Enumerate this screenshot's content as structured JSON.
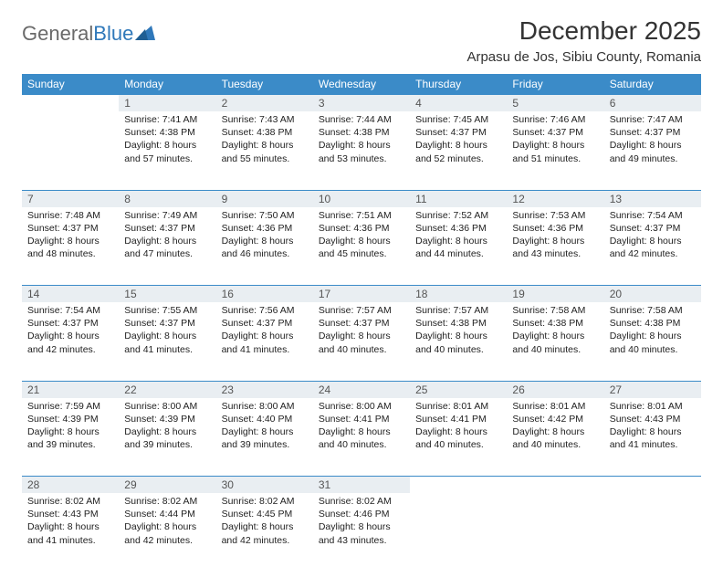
{
  "logo": {
    "text1": "General",
    "text2": "Blue"
  },
  "title": "December 2025",
  "location": "Arpasu de Jos, Sibiu County, Romania",
  "colors": {
    "header_bg": "#3b8bc8",
    "header_text": "#ffffff",
    "daynum_bg": "#e9eef2",
    "border": "#3b8bc8",
    "logo_gray": "#6a6a6a",
    "logo_blue": "#2f78ba"
  },
  "weekdays": [
    "Sunday",
    "Monday",
    "Tuesday",
    "Wednesday",
    "Thursday",
    "Friday",
    "Saturday"
  ],
  "weeks": [
    {
      "nums": [
        "",
        "1",
        "2",
        "3",
        "4",
        "5",
        "6"
      ],
      "cells": [
        null,
        {
          "sunrise": "Sunrise: 7:41 AM",
          "sunset": "Sunset: 4:38 PM",
          "day1": "Daylight: 8 hours",
          "day2": "and 57 minutes."
        },
        {
          "sunrise": "Sunrise: 7:43 AM",
          "sunset": "Sunset: 4:38 PM",
          "day1": "Daylight: 8 hours",
          "day2": "and 55 minutes."
        },
        {
          "sunrise": "Sunrise: 7:44 AM",
          "sunset": "Sunset: 4:38 PM",
          "day1": "Daylight: 8 hours",
          "day2": "and 53 minutes."
        },
        {
          "sunrise": "Sunrise: 7:45 AM",
          "sunset": "Sunset: 4:37 PM",
          "day1": "Daylight: 8 hours",
          "day2": "and 52 minutes."
        },
        {
          "sunrise": "Sunrise: 7:46 AM",
          "sunset": "Sunset: 4:37 PM",
          "day1": "Daylight: 8 hours",
          "day2": "and 51 minutes."
        },
        {
          "sunrise": "Sunrise: 7:47 AM",
          "sunset": "Sunset: 4:37 PM",
          "day1": "Daylight: 8 hours",
          "day2": "and 49 minutes."
        }
      ]
    },
    {
      "nums": [
        "7",
        "8",
        "9",
        "10",
        "11",
        "12",
        "13"
      ],
      "cells": [
        {
          "sunrise": "Sunrise: 7:48 AM",
          "sunset": "Sunset: 4:37 PM",
          "day1": "Daylight: 8 hours",
          "day2": "and 48 minutes."
        },
        {
          "sunrise": "Sunrise: 7:49 AM",
          "sunset": "Sunset: 4:37 PM",
          "day1": "Daylight: 8 hours",
          "day2": "and 47 minutes."
        },
        {
          "sunrise": "Sunrise: 7:50 AM",
          "sunset": "Sunset: 4:36 PM",
          "day1": "Daylight: 8 hours",
          "day2": "and 46 minutes."
        },
        {
          "sunrise": "Sunrise: 7:51 AM",
          "sunset": "Sunset: 4:36 PM",
          "day1": "Daylight: 8 hours",
          "day2": "and 45 minutes."
        },
        {
          "sunrise": "Sunrise: 7:52 AM",
          "sunset": "Sunset: 4:36 PM",
          "day1": "Daylight: 8 hours",
          "day2": "and 44 minutes."
        },
        {
          "sunrise": "Sunrise: 7:53 AM",
          "sunset": "Sunset: 4:36 PM",
          "day1": "Daylight: 8 hours",
          "day2": "and 43 minutes."
        },
        {
          "sunrise": "Sunrise: 7:54 AM",
          "sunset": "Sunset: 4:37 PM",
          "day1": "Daylight: 8 hours",
          "day2": "and 42 minutes."
        }
      ]
    },
    {
      "nums": [
        "14",
        "15",
        "16",
        "17",
        "18",
        "19",
        "20"
      ],
      "cells": [
        {
          "sunrise": "Sunrise: 7:54 AM",
          "sunset": "Sunset: 4:37 PM",
          "day1": "Daylight: 8 hours",
          "day2": "and 42 minutes."
        },
        {
          "sunrise": "Sunrise: 7:55 AM",
          "sunset": "Sunset: 4:37 PM",
          "day1": "Daylight: 8 hours",
          "day2": "and 41 minutes."
        },
        {
          "sunrise": "Sunrise: 7:56 AM",
          "sunset": "Sunset: 4:37 PM",
          "day1": "Daylight: 8 hours",
          "day2": "and 41 minutes."
        },
        {
          "sunrise": "Sunrise: 7:57 AM",
          "sunset": "Sunset: 4:37 PM",
          "day1": "Daylight: 8 hours",
          "day2": "and 40 minutes."
        },
        {
          "sunrise": "Sunrise: 7:57 AM",
          "sunset": "Sunset: 4:38 PM",
          "day1": "Daylight: 8 hours",
          "day2": "and 40 minutes."
        },
        {
          "sunrise": "Sunrise: 7:58 AM",
          "sunset": "Sunset: 4:38 PM",
          "day1": "Daylight: 8 hours",
          "day2": "and 40 minutes."
        },
        {
          "sunrise": "Sunrise: 7:58 AM",
          "sunset": "Sunset: 4:38 PM",
          "day1": "Daylight: 8 hours",
          "day2": "and 40 minutes."
        }
      ]
    },
    {
      "nums": [
        "21",
        "22",
        "23",
        "24",
        "25",
        "26",
        "27"
      ],
      "cells": [
        {
          "sunrise": "Sunrise: 7:59 AM",
          "sunset": "Sunset: 4:39 PM",
          "day1": "Daylight: 8 hours",
          "day2": "and 39 minutes."
        },
        {
          "sunrise": "Sunrise: 8:00 AM",
          "sunset": "Sunset: 4:39 PM",
          "day1": "Daylight: 8 hours",
          "day2": "and 39 minutes."
        },
        {
          "sunrise": "Sunrise: 8:00 AM",
          "sunset": "Sunset: 4:40 PM",
          "day1": "Daylight: 8 hours",
          "day2": "and 39 minutes."
        },
        {
          "sunrise": "Sunrise: 8:00 AM",
          "sunset": "Sunset: 4:41 PM",
          "day1": "Daylight: 8 hours",
          "day2": "and 40 minutes."
        },
        {
          "sunrise": "Sunrise: 8:01 AM",
          "sunset": "Sunset: 4:41 PM",
          "day1": "Daylight: 8 hours",
          "day2": "and 40 minutes."
        },
        {
          "sunrise": "Sunrise: 8:01 AM",
          "sunset": "Sunset: 4:42 PM",
          "day1": "Daylight: 8 hours",
          "day2": "and 40 minutes."
        },
        {
          "sunrise": "Sunrise: 8:01 AM",
          "sunset": "Sunset: 4:43 PM",
          "day1": "Daylight: 8 hours",
          "day2": "and 41 minutes."
        }
      ]
    },
    {
      "nums": [
        "28",
        "29",
        "30",
        "31",
        "",
        "",
        ""
      ],
      "cells": [
        {
          "sunrise": "Sunrise: 8:02 AM",
          "sunset": "Sunset: 4:43 PM",
          "day1": "Daylight: 8 hours",
          "day2": "and 41 minutes."
        },
        {
          "sunrise": "Sunrise: 8:02 AM",
          "sunset": "Sunset: 4:44 PM",
          "day1": "Daylight: 8 hours",
          "day2": "and 42 minutes."
        },
        {
          "sunrise": "Sunrise: 8:02 AM",
          "sunset": "Sunset: 4:45 PM",
          "day1": "Daylight: 8 hours",
          "day2": "and 42 minutes."
        },
        {
          "sunrise": "Sunrise: 8:02 AM",
          "sunset": "Sunset: 4:46 PM",
          "day1": "Daylight: 8 hours",
          "day2": "and 43 minutes."
        },
        null,
        null,
        null
      ]
    }
  ]
}
